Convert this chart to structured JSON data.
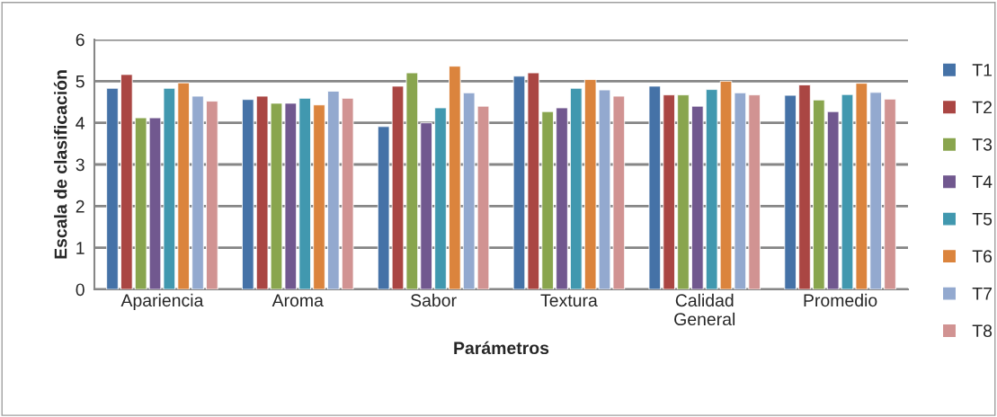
{
  "chart_data": {
    "type": "bar",
    "xlabel": "Parámetros",
    "ylabel": "Escala de clasificación",
    "categories": [
      "Apariencia",
      "Aroma",
      "Sabor",
      "Textura",
      "Calidad\nGeneral",
      "Promedio"
    ],
    "series": [
      {
        "name": "T1",
        "color": "#4572a7",
        "values": [
          4.83,
          4.56,
          3.91,
          5.12,
          4.88,
          4.66
        ]
      },
      {
        "name": "T2",
        "color": "#aa4643",
        "values": [
          5.16,
          4.64,
          4.88,
          5.2,
          4.67,
          4.91
        ]
      },
      {
        "name": "T3",
        "color": "#89a54e",
        "values": [
          4.12,
          4.47,
          5.2,
          4.27,
          4.67,
          4.55
        ]
      },
      {
        "name": "T4",
        "color": "#71588f",
        "values": [
          4.12,
          4.47,
          4.0,
          4.36,
          4.4,
          4.27
        ]
      },
      {
        "name": "T5",
        "color": "#4198af",
        "values": [
          4.83,
          4.59,
          4.36,
          4.83,
          4.8,
          4.68
        ]
      },
      {
        "name": "T6",
        "color": "#db843d",
        "values": [
          4.96,
          4.43,
          5.36,
          5.04,
          5.0,
          4.95
        ]
      },
      {
        "name": "T7",
        "color": "#93a9cf",
        "values": [
          4.64,
          4.76,
          4.72,
          4.79,
          4.72,
          4.73
        ]
      },
      {
        "name": "T8",
        "color": "#d19392",
        "values": [
          4.52,
          4.59,
          4.4,
          4.64,
          4.67,
          4.57
        ]
      }
    ],
    "ylim": [
      0,
      6
    ],
    "yticks": [
      0,
      1,
      2,
      3,
      4,
      5,
      6
    ],
    "grid": "y",
    "legend": "right"
  }
}
